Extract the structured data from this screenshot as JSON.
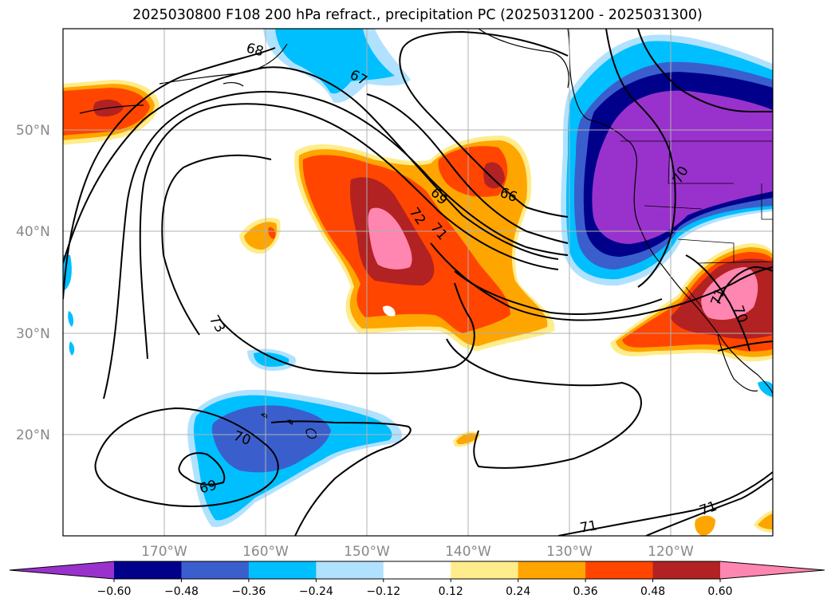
{
  "title": "2025030800 F108 200 hPa refract., precipitation PC (2025031200 - 2025031300)",
  "lat_labels": [
    "50°N",
    "40°N",
    "30°N",
    "20°N"
  ],
  "lon_labels": [
    "170°W",
    "160°W",
    "150°W",
    "140°W",
    "130°W",
    "120°W"
  ],
  "contour_labels": [
    "68",
    "67",
    "66",
    "69",
    "72",
    "71",
    "70",
    "73",
    "70",
    "69",
    "71",
    "71",
    "71",
    "70"
  ],
  "colorbar": {
    "colors": [
      "#9932cc",
      "#00008b",
      "#3a5fcd",
      "#00bfff",
      "#b0e2ff",
      "#ffffff",
      "#ffec8b",
      "#ffa500",
      "#ff4500",
      "#b22222",
      "#ff86b0"
    ],
    "tick_labels": [
      "−0.60",
      "−0.48",
      "−0.36",
      "−0.24",
      "−0.12",
      "0.12",
      "0.24",
      "0.36",
      "0.48",
      "0.60"
    ]
  }
}
